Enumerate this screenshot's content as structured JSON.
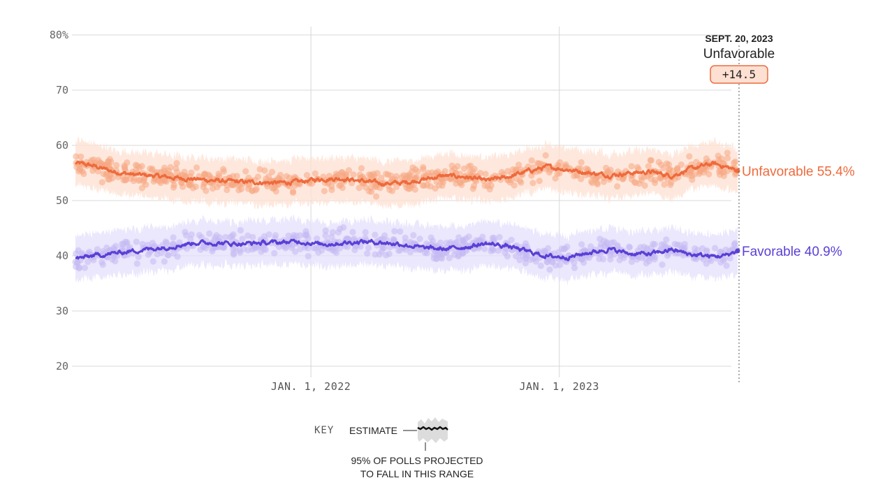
{
  "chart_data": {
    "type": "line",
    "subtype": "polling-average-with-poll-scatter-and-95pct-band",
    "y_ticks": [
      "80%",
      "70",
      "60",
      "50",
      "40",
      "30",
      "20"
    ],
    "ylim": [
      20,
      80
    ],
    "x_ticks": [
      {
        "date": "2022-01-01",
        "label": "JAN. 1, 2022"
      },
      {
        "date": "2023-01-01",
        "label": "JAN. 1, 2023"
      }
    ],
    "xlim": [
      "2021-01-20",
      "2023-09-20"
    ],
    "grid": true,
    "series": [
      {
        "name": "Unfavorable",
        "color": "#ee6a3c",
        "band_color": "#fde0d2",
        "dot_color": "#f6a884",
        "end_label": "Unfavorable 55.4%",
        "end_value": 55.4,
        "trend": [
          {
            "date": "2021-01-20",
            "value": 56.8
          },
          {
            "date": "2021-02-15",
            "value": 56.3
          },
          {
            "date": "2021-03-15",
            "value": 55.3
          },
          {
            "date": "2021-04-15",
            "value": 54.7
          },
          {
            "date": "2021-05-15",
            "value": 54.5
          },
          {
            "date": "2021-06-15",
            "value": 54.1
          },
          {
            "date": "2021-07-15",
            "value": 53.9
          },
          {
            "date": "2021-08-15",
            "value": 53.6
          },
          {
            "date": "2021-09-15",
            "value": 53.4
          },
          {
            "date": "2021-10-15",
            "value": 53.3
          },
          {
            "date": "2021-11-15",
            "value": 53.2
          },
          {
            "date": "2021-12-15",
            "value": 53.4
          },
          {
            "date": "2022-01-15",
            "value": 53.9
          },
          {
            "date": "2022-02-15",
            "value": 54.0
          },
          {
            "date": "2022-03-15",
            "value": 53.6
          },
          {
            "date": "2022-04-15",
            "value": 53.1
          },
          {
            "date": "2022-05-15",
            "value": 53.2
          },
          {
            "date": "2022-06-15",
            "value": 53.8
          },
          {
            "date": "2022-07-15",
            "value": 54.5
          },
          {
            "date": "2022-08-15",
            "value": 54.3
          },
          {
            "date": "2022-09-15",
            "value": 53.6
          },
          {
            "date": "2022-10-15",
            "value": 54.2
          },
          {
            "date": "2022-11-15",
            "value": 55.3
          },
          {
            "date": "2022-12-15",
            "value": 56.1
          },
          {
            "date": "2023-01-15",
            "value": 55.6
          },
          {
            "date": "2023-02-15",
            "value": 55.0
          },
          {
            "date": "2023-03-15",
            "value": 54.6
          },
          {
            "date": "2023-04-15",
            "value": 55.0
          },
          {
            "date": "2023-05-15",
            "value": 55.2
          },
          {
            "date": "2023-06-15",
            "value": 54.5
          },
          {
            "date": "2023-07-15",
            "value": 55.8
          },
          {
            "date": "2023-08-15",
            "value": 56.7
          },
          {
            "date": "2023-09-01",
            "value": 56.2
          },
          {
            "date": "2023-09-20",
            "value": 55.4
          }
        ]
      },
      {
        "name": "Favorable",
        "color": "#5b3fd6",
        "band_color": "#e4dffb",
        "dot_color": "#c4b9f2",
        "end_label": "Favorable 40.9%",
        "end_value": 40.9,
        "trend": [
          {
            "date": "2021-01-20",
            "value": 39.4
          },
          {
            "date": "2021-02-15",
            "value": 40.0
          },
          {
            "date": "2021-03-15",
            "value": 40.4
          },
          {
            "date": "2021-04-15",
            "value": 40.9
          },
          {
            "date": "2021-05-15",
            "value": 41.3
          },
          {
            "date": "2021-06-15",
            "value": 41.8
          },
          {
            "date": "2021-07-15",
            "value": 42.4
          },
          {
            "date": "2021-08-15",
            "value": 42.3
          },
          {
            "date": "2021-09-15",
            "value": 42.2
          },
          {
            "date": "2021-10-15",
            "value": 42.3
          },
          {
            "date": "2021-11-15",
            "value": 42.4
          },
          {
            "date": "2021-12-15",
            "value": 42.6
          },
          {
            "date": "2022-01-15",
            "value": 42.1
          },
          {
            "date": "2022-02-15",
            "value": 42.3
          },
          {
            "date": "2022-03-15",
            "value": 42.6
          },
          {
            "date": "2022-04-15",
            "value": 42.4
          },
          {
            "date": "2022-05-15",
            "value": 42.1
          },
          {
            "date": "2022-06-15",
            "value": 41.4
          },
          {
            "date": "2022-07-15",
            "value": 41.2
          },
          {
            "date": "2022-08-15",
            "value": 41.6
          },
          {
            "date": "2022-09-15",
            "value": 42.2
          },
          {
            "date": "2022-10-15",
            "value": 41.8
          },
          {
            "date": "2022-11-15",
            "value": 40.8
          },
          {
            "date": "2022-12-15",
            "value": 39.9
          },
          {
            "date": "2023-01-15",
            "value": 39.8
          },
          {
            "date": "2023-02-15",
            "value": 40.6
          },
          {
            "date": "2023-03-15",
            "value": 41.2
          },
          {
            "date": "2023-04-15",
            "value": 40.4
          },
          {
            "date": "2023-05-15",
            "value": 40.3
          },
          {
            "date": "2023-06-15",
            "value": 41.1
          },
          {
            "date": "2023-07-15",
            "value": 40.2
          },
          {
            "date": "2023-08-15",
            "value": 39.9
          },
          {
            "date": "2023-09-01",
            "value": 40.0
          },
          {
            "date": "2023-09-20",
            "value": 40.9
          }
        ]
      }
    ],
    "band_half_width": 4.0,
    "hover": {
      "date_label": "SEPT. 20, 2023",
      "series_label": "Unfavorable",
      "margin": "+14.5",
      "badge_fill": "#fde0d2",
      "badge_stroke": "#ee6a3c"
    },
    "key": {
      "title": "KEY",
      "estimate_label": "ESTIMATE",
      "range_label_line1": "95% OF POLLS PROJECTED",
      "range_label_line2": "TO FALL IN THIS RANGE"
    }
  }
}
